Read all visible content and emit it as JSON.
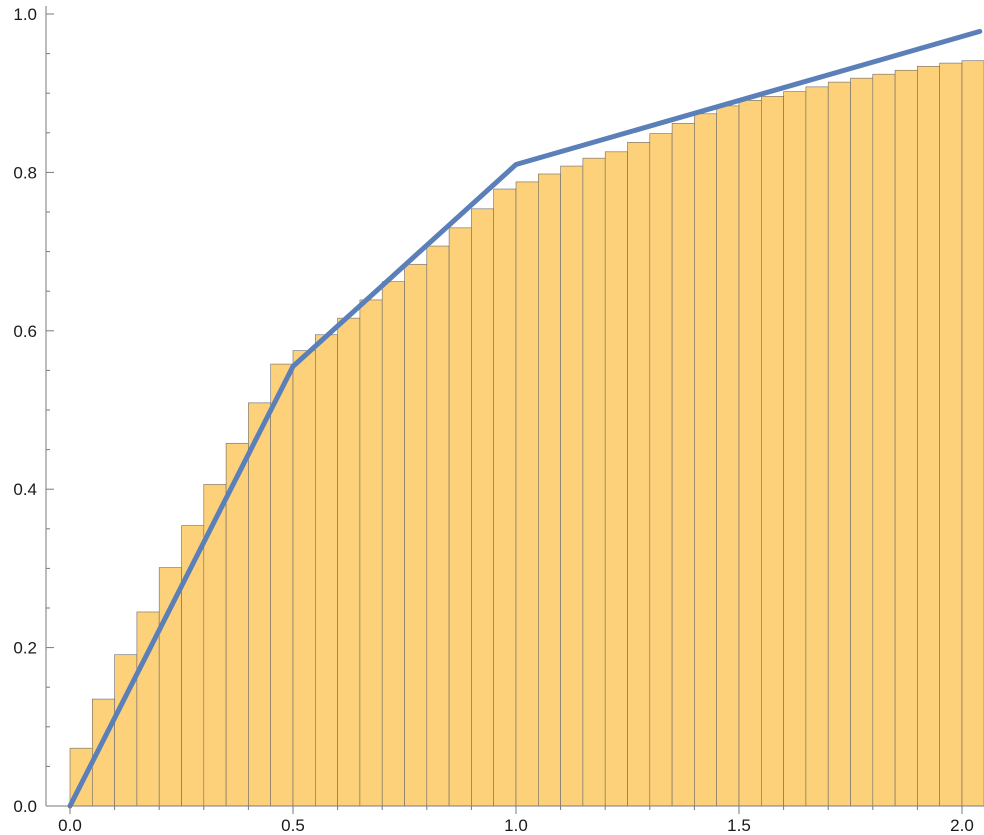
{
  "chart_data": {
    "type": "bar",
    "title": "",
    "xlabel": "",
    "ylabel": "",
    "xlim": [
      -0.05,
      2.04
    ],
    "ylim": [
      0.0,
      1.0
    ],
    "x_ticks": [
      {
        "value": 0.0,
        "label": "0.0"
      },
      {
        "value": 0.5,
        "label": "0.5"
      },
      {
        "value": 1.0,
        "label": "1.0"
      },
      {
        "value": 1.5,
        "label": "1.5"
      },
      {
        "value": 2.0,
        "label": "2.0"
      }
    ],
    "y_ticks": [
      {
        "value": 0.0,
        "label": "0.0"
      },
      {
        "value": 0.2,
        "label": "0.2"
      },
      {
        "value": 0.4,
        "label": "0.4"
      },
      {
        "value": 0.6,
        "label": "0.6"
      },
      {
        "value": 0.8,
        "label": "0.8"
      },
      {
        "value": 1.0,
        "label": "1.0"
      }
    ],
    "grid": false,
    "bars": {
      "bin_width": 0.05,
      "bin_starts": [
        0.0,
        0.05,
        0.1,
        0.15,
        0.2,
        0.25,
        0.3,
        0.35,
        0.4,
        0.45,
        0.5,
        0.55,
        0.6,
        0.65,
        0.7,
        0.75,
        0.8,
        0.85,
        0.9,
        0.95,
        1.0,
        1.05,
        1.1,
        1.15,
        1.2,
        1.25,
        1.3,
        1.35,
        1.4,
        1.45,
        1.5,
        1.55,
        1.6,
        1.65,
        1.7,
        1.75,
        1.8,
        1.85,
        1.9,
        1.95,
        2.0
      ],
      "values": [
        0.073,
        0.135,
        0.191,
        0.245,
        0.301,
        0.354,
        0.406,
        0.458,
        0.509,
        0.558,
        0.575,
        0.595,
        0.616,
        0.639,
        0.662,
        0.684,
        0.707,
        0.73,
        0.754,
        0.779,
        0.788,
        0.798,
        0.808,
        0.818,
        0.826,
        0.838,
        0.849,
        0.862,
        0.874,
        0.884,
        0.891,
        0.896,
        0.902,
        0.908,
        0.914,
        0.919,
        0.924,
        0.929,
        0.934,
        0.938,
        0.941
      ],
      "fill_color": "#fdd07a",
      "edge_color": "#6b6b6b"
    },
    "series": [
      {
        "type": "line",
        "color": "#5b7fb8",
        "x": [
          0.0,
          0.5,
          1.0,
          2.04
        ],
        "y": [
          0.0,
          0.555,
          0.81,
          0.978
        ]
      }
    ]
  }
}
